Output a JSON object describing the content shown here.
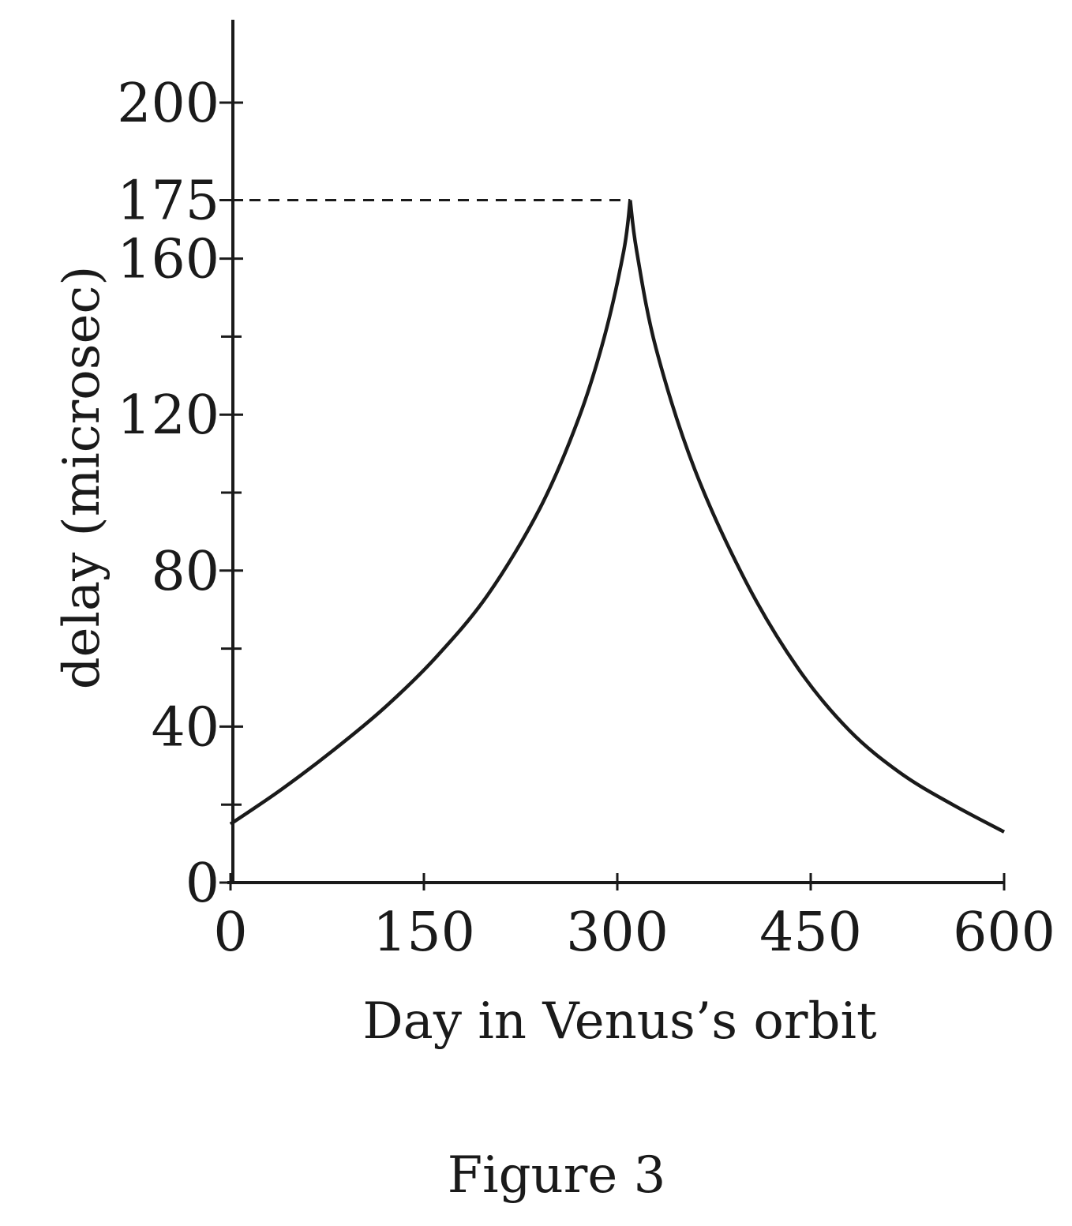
{
  "chart_data": {
    "type": "line",
    "title": "",
    "xlabel": "Day in Venus’s orbit",
    "ylabel": "delay (microsec)",
    "xlim": [
      0,
      600
    ],
    "ylim": [
      0,
      200
    ],
    "x_ticks": [
      0,
      150,
      300,
      450,
      600
    ],
    "y_ticks_labeled": [
      0,
      40,
      80,
      120,
      160,
      175,
      200
    ],
    "y_ticks_minor": [
      20,
      60,
      100,
      140
    ],
    "grid": false,
    "legend": "none",
    "reference_line": {
      "y": 175,
      "x_from": 0,
      "x_to": 310,
      "style": "dashed"
    },
    "series": [
      {
        "x": [
          0,
          40,
          80,
          120,
          160,
          200,
          240,
          270,
          290,
          305,
          310,
          315,
          330,
          360,
          400,
          440,
          480,
          520,
          560,
          600
        ],
        "y": [
          15,
          24,
          34,
          45,
          58,
          74,
          96,
          119,
          140,
          162,
          175,
          162,
          137,
          106,
          77,
          55,
          39,
          28,
          20,
          13
        ]
      }
    ]
  },
  "figure": {
    "caption": "Figure 3"
  }
}
